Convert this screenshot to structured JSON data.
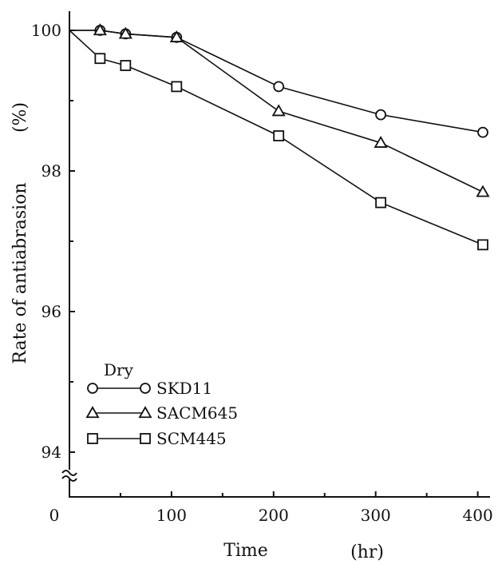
{
  "chart_data": {
    "type": "line",
    "title": "",
    "xlabel": "Time",
    "xunit": "(hr)",
    "ylabel": "Rate of antiabrasion",
    "yunit": "(%)",
    "x_origin_label": "0",
    "xlim": [
      0,
      420
    ],
    "ylim": [
      93.5,
      100.3
    ],
    "y_axis_break": true,
    "grid": false,
    "x_ticks": [
      100,
      200,
      300,
      400
    ],
    "y_ticks": [
      94,
      96,
      98,
      100
    ],
    "legend_title": "Dry",
    "legend_position": "bottom-left",
    "series": [
      {
        "name": "SKD11",
        "marker": "circle",
        "x": [
          0,
          30,
          55,
          105,
          205,
          305,
          405
        ],
        "y": [
          100.0,
          100.0,
          99.95,
          99.9,
          99.2,
          98.8,
          98.55
        ],
        "marked": [
          false,
          true,
          true,
          true,
          true,
          true,
          true
        ]
      },
      {
        "name": "SACM645",
        "marker": "triangle",
        "x": [
          0,
          30,
          55,
          105,
          205,
          305,
          405
        ],
        "y": [
          100.0,
          100.0,
          99.95,
          99.9,
          98.85,
          98.4,
          97.7
        ],
        "marked": [
          false,
          true,
          true,
          true,
          true,
          true,
          true
        ]
      },
      {
        "name": "SCM445",
        "marker": "square",
        "x": [
          0,
          30,
          55,
          105,
          205,
          305,
          405
        ],
        "y": [
          100.0,
          99.6,
          99.5,
          99.2,
          98.5,
          97.55,
          96.95
        ],
        "marked": [
          false,
          true,
          true,
          true,
          true,
          true,
          true
        ]
      }
    ]
  }
}
